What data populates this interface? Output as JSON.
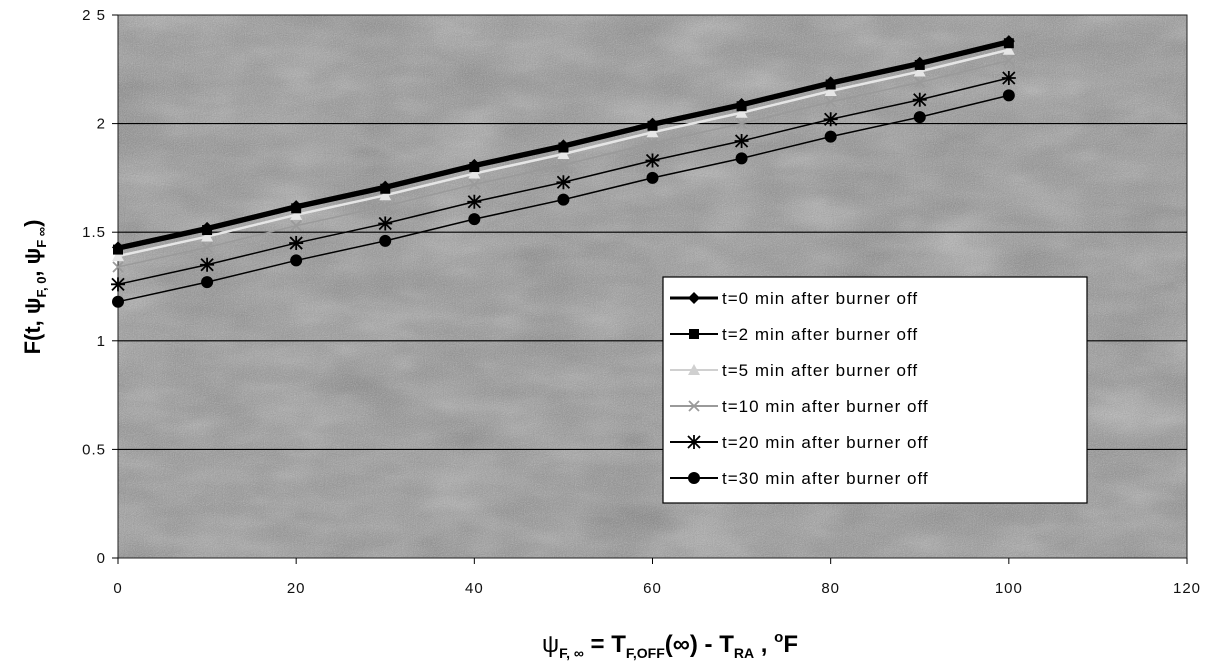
{
  "chart_data": {
    "type": "line",
    "x": [
      0,
      10,
      20,
      30,
      40,
      50,
      60,
      70,
      80,
      90,
      100
    ],
    "xlim": [
      0,
      120
    ],
    "ylim": [
      0,
      2.5
    ],
    "xticks": [
      0,
      20,
      40,
      60,
      80,
      100,
      120
    ],
    "yticks": [
      0,
      0.5,
      1,
      1.5,
      2,
      2.5
    ],
    "xtick_labels": [
      "0",
      "20",
      "40",
      "60",
      "80",
      "100",
      "120"
    ],
    "ytick_labels": [
      "0",
      "0.5",
      "1",
      "1.5",
      "2",
      "2 5"
    ],
    "grid": "horizontal",
    "legend_position": "right",
    "xlabel": {
      "psi": "ψ",
      "sub1": "F, ∞",
      "mid": " = T",
      "sub2": "F,OFF",
      "mid2": "(∞) - T",
      "sub3": "RA",
      "mid3": " ,  ",
      "sup": "o",
      "unit": "F"
    },
    "ylabel": {
      "pre": "F(t, ψ",
      "sub1": "F, 0",
      "mid": ", ψ",
      "sub2": "F ∞",
      "post": ")"
    },
    "series": [
      {
        "name": "t=0 min  after burner off",
        "color": "#000000",
        "marker": "diamond",
        "values": [
          1.43,
          1.52,
          1.62,
          1.71,
          1.81,
          1.9,
          2.0,
          2.09,
          2.19,
          2.28,
          2.38
        ]
      },
      {
        "name": "t=2 min  after burner off",
        "color": "#000000",
        "marker": "square",
        "values": [
          1.42,
          1.51,
          1.61,
          1.7,
          1.8,
          1.89,
          1.99,
          2.08,
          2.18,
          2.27,
          2.37
        ]
      },
      {
        "name": "t=5 min  after burner off",
        "color": "#e6e6e6",
        "marker": "triangle",
        "values": [
          1.39,
          1.48,
          1.58,
          1.67,
          1.77,
          1.86,
          1.96,
          2.05,
          2.15,
          2.24,
          2.34
        ]
      },
      {
        "name": "t=10 min  after burner off",
        "color": "#9a9a9a",
        "marker": "x",
        "values": [
          1.34,
          1.43,
          1.53,
          1.62,
          1.72,
          1.81,
          1.91,
          2.0,
          2.1,
          2.19,
          2.29
        ]
      },
      {
        "name": "t=20 min  after burner off",
        "color": "#000000",
        "marker": "star",
        "values": [
          1.26,
          1.35,
          1.45,
          1.54,
          1.64,
          1.73,
          1.83,
          1.92,
          2.02,
          2.11,
          2.21
        ]
      },
      {
        "name": "t=30 min  after burner off",
        "color": "#000000",
        "marker": "circle",
        "values": [
          1.18,
          1.27,
          1.37,
          1.46,
          1.56,
          1.65,
          1.75,
          1.84,
          1.94,
          2.03,
          2.13
        ]
      }
    ]
  }
}
